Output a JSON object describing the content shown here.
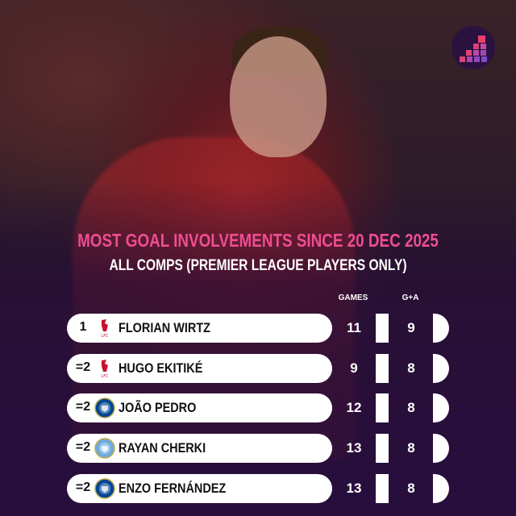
{
  "title": "MOST GOAL INVOLVEMENTS SINCE 20 DEC 2025",
  "subtitle": "ALL COMPS (PREMIER LEAGUE PLAYERS ONLY)",
  "columns": {
    "games": "GAMES",
    "ga": "G+A"
  },
  "colors": {
    "title": "#ee4d92",
    "liverpool": "#c8102e",
    "chelsea": "#034694",
    "city": "#6cabdd"
  },
  "rows": [
    {
      "rank": "1",
      "club": "liverpool",
      "crest_text": "LFC",
      "name": "FLORIAN WIRTZ",
      "games": "11",
      "ga": "9"
    },
    {
      "rank": "=2",
      "club": "liverpool",
      "crest_text": "LFC",
      "name": "HUGO EKITIKÉ",
      "games": "9",
      "ga": "8"
    },
    {
      "rank": "=2",
      "club": "chelsea",
      "crest_text": "CHELSEA",
      "name": "JOÃO PEDRO",
      "games": "12",
      "ga": "8"
    },
    {
      "rank": "=2",
      "club": "city",
      "crest_text": "MANCHESTER CITY",
      "name": "RAYAN CHERKI",
      "games": "13",
      "ga": "8"
    },
    {
      "rank": "=2",
      "club": "chelsea",
      "crest_text": "CHELSEA",
      "name": "ENZO FERNÁNDEZ",
      "games": "13",
      "ga": "8"
    }
  ]
}
